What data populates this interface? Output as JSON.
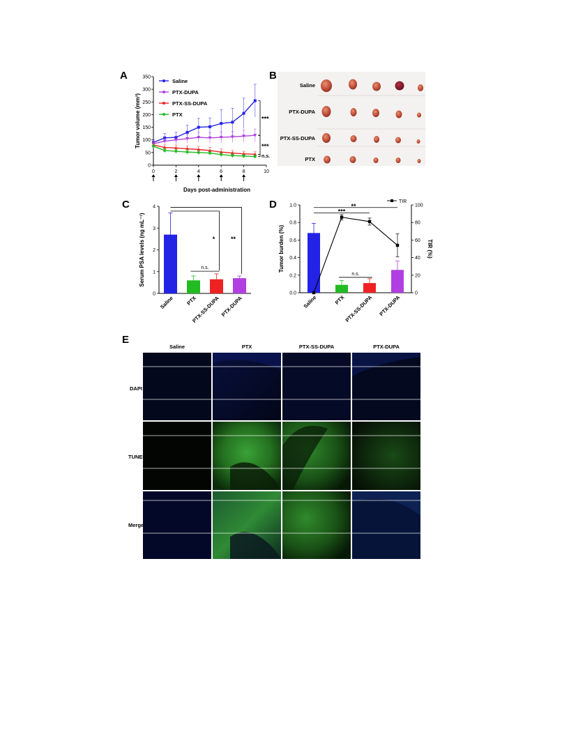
{
  "panels": {
    "A": "A",
    "B": "B",
    "C": "C",
    "D": "D",
    "E": "E"
  },
  "colors": {
    "saline": "#2323e6",
    "ptx_dupa": "#b040e0",
    "ptx_ss_dupa": "#ee2222",
    "ptx": "#22bb22"
  },
  "chart_data": [
    {
      "type": "line",
      "panel": "A",
      "xlabel": "Days post-administration",
      "ylabel": "Tumor volume (mm³)",
      "xlim": [
        0,
        10
      ],
      "ylim": [
        0,
        350
      ],
      "xticks": [
        "0",
        "2",
        "4",
        "6",
        "8",
        "10"
      ],
      "yticks": [
        "0",
        "50",
        "100",
        "150",
        "200",
        "250",
        "300",
        "350"
      ],
      "dosing_days": [
        0,
        2,
        4,
        6,
        8
      ],
      "series": [
        {
          "name": "Saline",
          "color": "#2323e6",
          "x": [
            0,
            1,
            2,
            3,
            4,
            5,
            6,
            7,
            8,
            9
          ],
          "y": [
            90,
            108,
            110,
            130,
            150,
            152,
            165,
            170,
            205,
            255
          ],
          "err": [
            10,
            18,
            20,
            28,
            35,
            35,
            55,
            55,
            60,
            65
          ]
        },
        {
          "name": "PTX-DUPA",
          "color": "#b040e0",
          "x": [
            0,
            1,
            2,
            3,
            4,
            5,
            6,
            7,
            8,
            9
          ],
          "y": [
            85,
            95,
            100,
            105,
            110,
            108,
            110,
            112,
            115,
            118
          ],
          "err": [
            8,
            12,
            15,
            18,
            20,
            20,
            22,
            22,
            25,
            25
          ]
        },
        {
          "name": "PTX-SS-DUPA",
          "color": "#ee2222",
          "x": [
            0,
            1,
            2,
            3,
            4,
            5,
            6,
            7,
            8,
            9
          ],
          "y": [
            80,
            70,
            68,
            65,
            62,
            58,
            52,
            48,
            45,
            43
          ],
          "err": [
            8,
            10,
            12,
            12,
            12,
            12,
            12,
            10,
            10,
            10
          ]
        },
        {
          "name": "PTX",
          "color": "#22bb22",
          "x": [
            0,
            1,
            2,
            3,
            4,
            5,
            6,
            7,
            8,
            9
          ],
          "y": [
            75,
            58,
            55,
            52,
            50,
            48,
            42,
            38,
            36,
            34
          ],
          "err": [
            8,
            10,
            10,
            10,
            10,
            10,
            10,
            8,
            8,
            8
          ]
        }
      ],
      "annotations": [
        "***",
        "***",
        "n.s."
      ]
    },
    {
      "type": "bar",
      "panel": "C",
      "ylabel": "Serum PSA levels (ng mL⁻¹)",
      "ylim": [
        0,
        4
      ],
      "yticks": [
        "0",
        "1",
        "2",
        "3",
        "4"
      ],
      "categories": [
        "Saline",
        "PTX",
        "PTX-SS-DUPA",
        "PTX-DUPA"
      ],
      "values": [
        2.7,
        0.6,
        0.65,
        0.7
      ],
      "errors": [
        1.0,
        0.2,
        0.25,
        0.1
      ],
      "bar_colors": [
        "#2323e6",
        "#22bb22",
        "#ee2222",
        "#b040e0"
      ],
      "annotations": [
        "n.s.",
        "*",
        "**"
      ]
    },
    {
      "type": "bar",
      "panel": "D",
      "ylabel": "Tumor burden (%)",
      "y2label": "TIR (%)",
      "ylim": [
        0,
        1.0
      ],
      "y2lim": [
        0,
        100
      ],
      "yticks": [
        "0.0",
        "0.2",
        "0.4",
        "0.6",
        "0.8",
        "1.0"
      ],
      "y2ticks": [
        "0",
        "20",
        "40",
        "60",
        "80",
        "100"
      ],
      "categories": [
        "Saline",
        "PTX",
        "PTX-SS-DUPA",
        "PTX-DUPA"
      ],
      "values": [
        0.68,
        0.09,
        0.11,
        0.26
      ],
      "errors": [
        0.11,
        0.05,
        0.05,
        0.1
      ],
      "bar_colors": [
        "#2323e6",
        "#22bb22",
        "#ee2222",
        "#b040e0"
      ],
      "line_series": {
        "name": "TIR",
        "values": [
          0,
          86,
          81,
          54
        ],
        "errors": [
          0,
          3,
          4,
          13
        ]
      },
      "annotations": [
        "**",
        "***",
        "n.s."
      ]
    }
  ],
  "photo_panel": {
    "rows": [
      "Saline",
      "PTX-DUPA",
      "PTX-SS-DUPA",
      "PTX"
    ]
  },
  "micro_panel": {
    "columns": [
      "Saline",
      "PTX",
      "PTX-SS-DUPA",
      "PTX-DUPA"
    ],
    "rows": [
      "DAPI",
      "TUNEL",
      "Merge"
    ]
  }
}
